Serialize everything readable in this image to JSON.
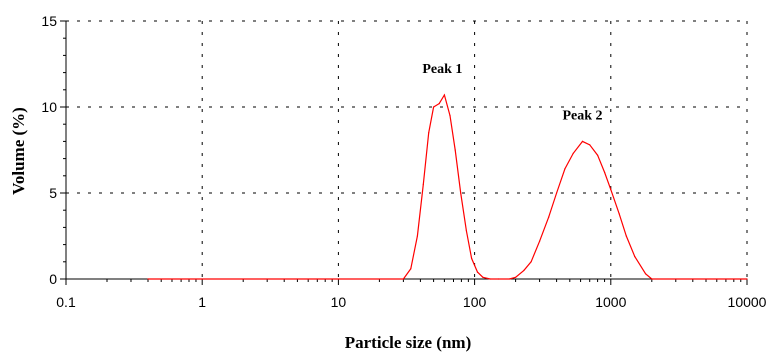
{
  "chart_data": {
    "type": "line",
    "xlabel": "Particle size (nm)",
    "ylabel": "Volume (%)",
    "x_scale": "log",
    "xlim": [
      0.1,
      10000
    ],
    "ylim": [
      0,
      15
    ],
    "x_ticks": [
      "0.1",
      "1",
      "10",
      "100",
      "1000",
      "10000"
    ],
    "y_ticks": [
      "0",
      "5",
      "10",
      "15"
    ],
    "grid": true,
    "series_color": "#ff0000",
    "annotations": [
      {
        "text": "Peak 1",
        "x": 58,
        "y": 10.7
      },
      {
        "text": "Peak 2",
        "x": 620,
        "y": 8.0
      }
    ],
    "series": [
      {
        "x": [
          0.4,
          30,
          34,
          38,
          42,
          46,
          50,
          55,
          60,
          66,
          72,
          79,
          87,
          95,
          105,
          115,
          130,
          150,
          180,
          200,
          230,
          260,
          300,
          350,
          400,
          460,
          530,
          620,
          700,
          800,
          900,
          1000,
          1150,
          1300,
          1500,
          1800,
          2000,
          10000
        ],
        "y": [
          0,
          0,
          0.6,
          2.5,
          5.5,
          8.5,
          10.0,
          10.2,
          10.7,
          9.5,
          7.5,
          5.0,
          2.8,
          1.2,
          0.4,
          0.1,
          0,
          0,
          0,
          0.1,
          0.5,
          1.0,
          2.2,
          3.6,
          5.0,
          6.4,
          7.3,
          8.0,
          7.8,
          7.2,
          6.2,
          5.2,
          3.8,
          2.5,
          1.3,
          0.3,
          0,
          0
        ]
      }
    ]
  }
}
